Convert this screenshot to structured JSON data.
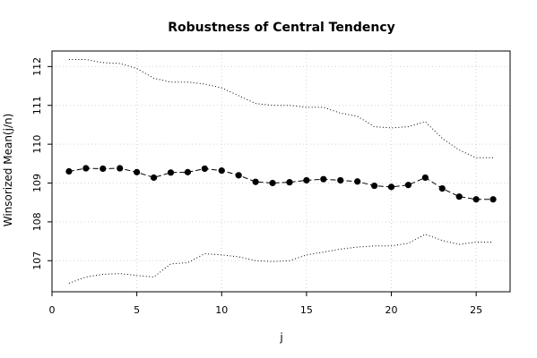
{
  "chart_data": {
    "type": "line",
    "title": "Robustness of Central Tendency",
    "xlabel": "j",
    "ylabel": "Winsorized Mean(j/n)",
    "xlim": [
      0,
      27
    ],
    "ylim": [
      106.2,
      112.4
    ],
    "xticks": [
      "0",
      "5",
      "10",
      "15",
      "20",
      "25"
    ],
    "yticks": [
      "107",
      "108",
      "109",
      "110",
      "111",
      "112"
    ],
    "grid": true,
    "x": [
      1,
      2,
      3,
      4,
      5,
      6,
      7,
      8,
      9,
      10,
      11,
      12,
      13,
      14,
      15,
      16,
      17,
      18,
      19,
      20,
      21,
      22,
      23,
      24,
      25,
      26
    ],
    "series": [
      {
        "role": "mean",
        "style": "dashed-points",
        "color": "#000000",
        "values": [
          109.3,
          109.38,
          109.37,
          109.38,
          109.28,
          109.14,
          109.27,
          109.28,
          109.37,
          109.32,
          109.2,
          109.03,
          109.0,
          109.02,
          109.07,
          109.1,
          109.07,
          109.04,
          108.93,
          108.9,
          108.95,
          109.14,
          108.86,
          108.65,
          108.58,
          108.58
        ]
      },
      {
        "role": "upper",
        "style": "dotted",
        "color": "#000000",
        "values": [
          112.18,
          112.18,
          112.1,
          112.08,
          111.95,
          111.7,
          111.6,
          111.6,
          111.55,
          111.45,
          111.25,
          111.05,
          111.0,
          111.0,
          110.95,
          110.95,
          110.8,
          110.72,
          110.45,
          110.42,
          110.45,
          110.58,
          110.15,
          109.85,
          109.65,
          109.65
        ]
      },
      {
        "role": "lower",
        "style": "dotted",
        "color": "#000000",
        "values": [
          106.42,
          106.58,
          106.65,
          106.67,
          106.62,
          106.58,
          106.92,
          106.95,
          107.18,
          107.15,
          107.1,
          107.0,
          106.98,
          107.0,
          107.15,
          107.22,
          107.3,
          107.35,
          107.38,
          107.38,
          107.45,
          107.68,
          107.52,
          107.42,
          107.48,
          107.48
        ]
      }
    ]
  }
}
